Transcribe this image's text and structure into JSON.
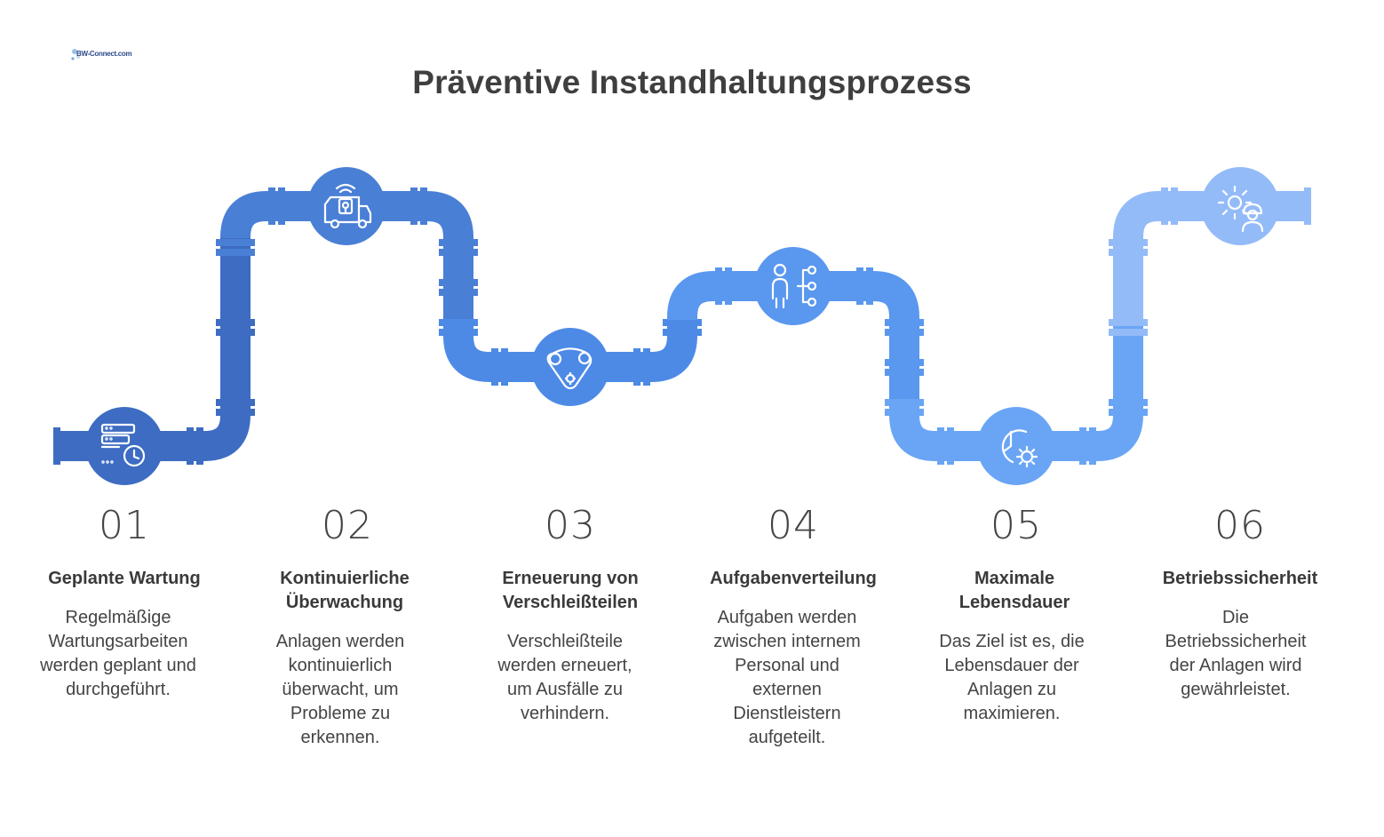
{
  "logo": {
    "text": "BW-Connect.com"
  },
  "title": "Präventive Instandhaltungsprozess",
  "colors": {
    "step1": "#3d6cc2",
    "step2": "#4a7fd6",
    "step3": "#4d8ae6",
    "step4": "#5a97ef",
    "step5": "#6aa5f5",
    "step6": "#93bbf8"
  },
  "steps": [
    {
      "number": "01",
      "title": "Geplante Wartung",
      "description": "Regelmäßige Wartungsarbeiten werden geplant und durchgeführt.",
      "icon": "server-clock-icon"
    },
    {
      "number": "02",
      "title": "Kontinuierliche Überwachung",
      "description": "Anlagen werden kontinuierlich überwacht, um Probleme zu erkennen.",
      "icon": "monitoring-truck-icon"
    },
    {
      "number": "03",
      "title": "Erneuerung von Verschleißteilen",
      "description": "Verschleißteile werden erneuert, um Ausfälle zu verhindern.",
      "icon": "belt-drive-icon"
    },
    {
      "number": "04",
      "title": "Aufgabenverteilung",
      "description": "Aufgaben werden zwischen internem Personal und externen Dienstleistern aufgeteilt.",
      "icon": "person-network-icon"
    },
    {
      "number": "05",
      "title": "Maximale Lebensdauer",
      "description": "Das Ziel ist es, die Lebensdauer der Anlagen zu maximieren.",
      "icon": "clock-gear-icon"
    },
    {
      "number": "06",
      "title": "Betriebssicherheit",
      "description": "Die Betriebssicherheit der Anlagen wird gewährleistet.",
      "icon": "gear-worker-icon"
    }
  ]
}
